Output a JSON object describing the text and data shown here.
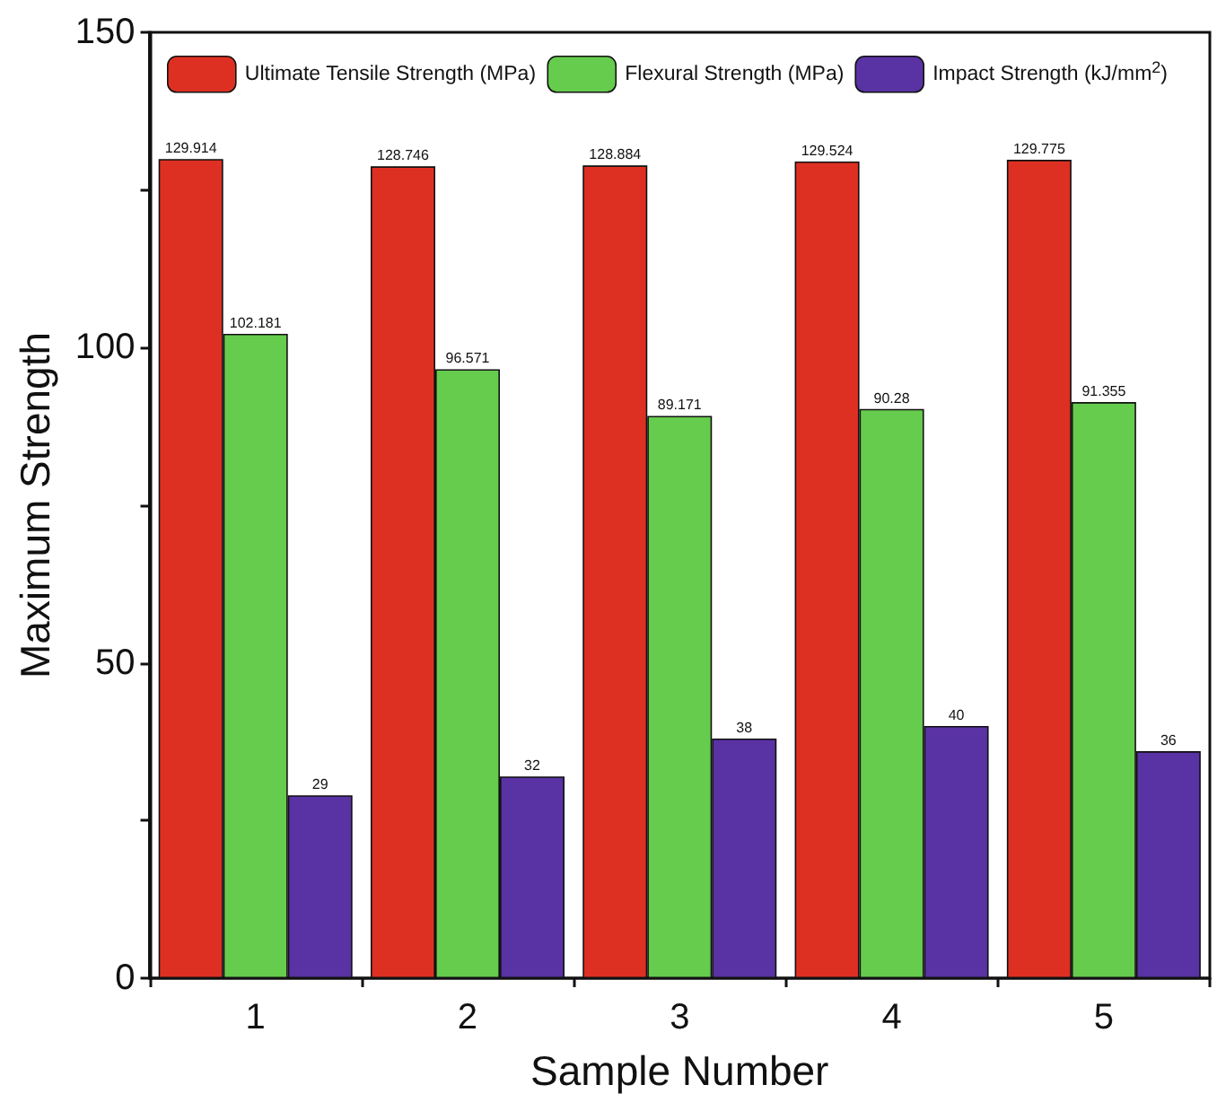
{
  "chart_data": {
    "type": "bar",
    "xlabel": "Sample Number",
    "ylabel": "Maximum Strength",
    "categories": [
      "1",
      "2",
      "3",
      "4",
      "5"
    ],
    "series": [
      {
        "name": "Ultimate Tensile Strength (MPa)",
        "color": "#de3022",
        "values": [
          129.914,
          128.746,
          128.884,
          129.524,
          129.775
        ]
      },
      {
        "name": "Flexural Strength (MPa)",
        "color": "#66cc4d",
        "values": [
          102.181,
          96.571,
          89.171,
          90.28,
          91.355
        ]
      },
      {
        "name": "Impact Strength (kJ/mm$^{2}$)",
        "color": "#5932a3",
        "values": [
          29,
          32,
          38,
          40,
          36
        ]
      }
    ],
    "ylim": [
      0,
      150
    ],
    "yticks": [
      0,
      {
        "value": 25,
        "label": null
      },
      50,
      {
        "value": 75,
        "label": null
      },
      100,
      {
        "value": 125,
        "label": null
      },
      150
    ],
    "data_labels": true,
    "legend": "top",
    "grid": false
  }
}
